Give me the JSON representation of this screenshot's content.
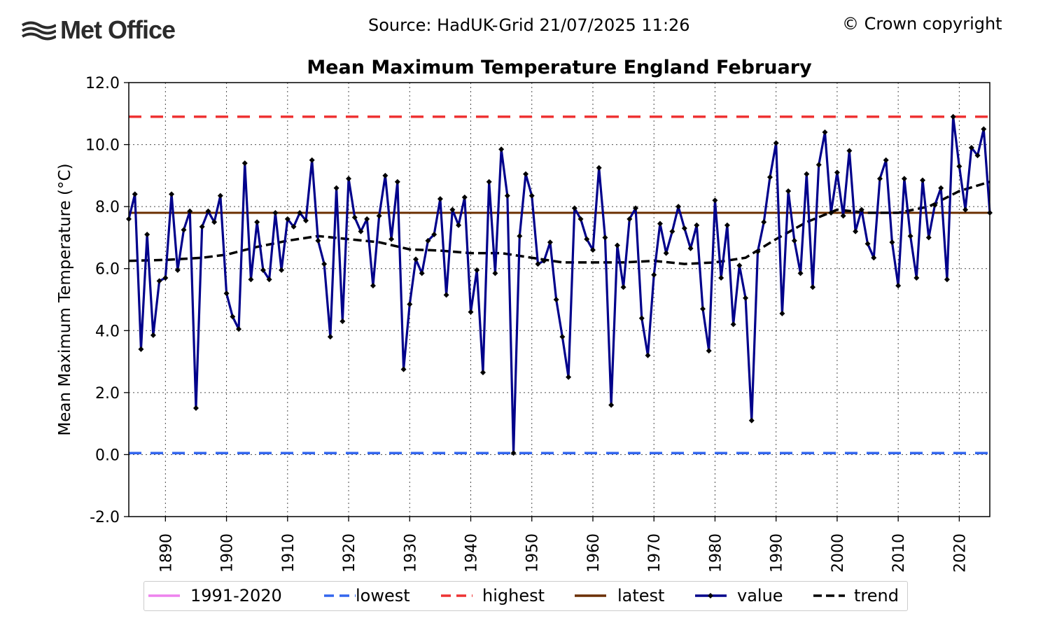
{
  "header": {
    "logo_text": "Met Office",
    "source": "Source: HadUK-Grid 21/07/2025 11:26",
    "copyright": "© Crown copyright"
  },
  "colors": {
    "value": "#00008b",
    "trend": "#000000",
    "highest": "#ee3333",
    "lowest": "#3366ee",
    "latest": "#6b2f00",
    "baseline": "#ee82ee",
    "marker": "#000000"
  },
  "chart_data": {
    "type": "line",
    "title": "Mean Maximum Temperature England February",
    "ylabel": "Mean Maximum Temperature (°C)",
    "xlabel": "",
    "xlim": [
      1884,
      2025
    ],
    "ylim": [
      -2.0,
      12.0
    ],
    "yticks": [
      "-2.0",
      "0.0",
      "2.0",
      "4.0",
      "6.0",
      "8.0",
      "10.0",
      "12.0"
    ],
    "xticks": [
      "1890",
      "1900",
      "1910",
      "1920",
      "1930",
      "1940",
      "1950",
      "1960",
      "1970",
      "1980",
      "1990",
      "2000",
      "2010",
      "2020"
    ],
    "grid": true,
    "legend_position": "bottom",
    "series": [
      {
        "name": "value",
        "x": [
          1884,
          1885,
          1886,
          1887,
          1888,
          1889,
          1890,
          1891,
          1892,
          1893,
          1894,
          1895,
          1896,
          1897,
          1898,
          1899,
          1900,
          1901,
          1902,
          1903,
          1904,
          1905,
          1906,
          1907,
          1908,
          1909,
          1910,
          1911,
          1912,
          1913,
          1914,
          1915,
          1916,
          1917,
          1918,
          1919,
          1920,
          1921,
          1922,
          1923,
          1924,
          1925,
          1926,
          1927,
          1928,
          1929,
          1930,
          1931,
          1932,
          1933,
          1934,
          1935,
          1936,
          1937,
          1938,
          1939,
          1940,
          1941,
          1942,
          1943,
          1944,
          1945,
          1946,
          1947,
          1948,
          1949,
          1950,
          1951,
          1952,
          1953,
          1954,
          1955,
          1956,
          1957,
          1958,
          1959,
          1960,
          1961,
          1962,
          1963,
          1964,
          1965,
          1966,
          1967,
          1968,
          1969,
          1970,
          1971,
          1972,
          1973,
          1974,
          1975,
          1976,
          1977,
          1978,
          1979,
          1980,
          1981,
          1982,
          1983,
          1984,
          1985,
          1986,
          1987,
          1988,
          1989,
          1990,
          1991,
          1992,
          1993,
          1994,
          1995,
          1996,
          1997,
          1998,
          1999,
          2000,
          2001,
          2002,
          2003,
          2004,
          2005,
          2006,
          2007,
          2008,
          2009,
          2010,
          2011,
          2012,
          2013,
          2014,
          2015,
          2016,
          2017,
          2018,
          2019,
          2020,
          2021,
          2022,
          2023,
          2024,
          2025
        ],
        "values": [
          7.6,
          8.4,
          3.4,
          7.1,
          3.85,
          5.6,
          5.7,
          8.4,
          5.95,
          7.25,
          7.85,
          1.5,
          7.35,
          7.85,
          7.5,
          8.35,
          5.2,
          4.45,
          4.05,
          9.4,
          5.65,
          7.5,
          5.95,
          5.65,
          7.8,
          5.95,
          7.6,
          7.35,
          7.8,
          7.55,
          9.5,
          6.9,
          6.15,
          3.8,
          8.6,
          4.3,
          8.9,
          7.65,
          7.2,
          7.6,
          5.45,
          7.7,
          9.0,
          6.95,
          8.8,
          2.75,
          4.85,
          6.3,
          5.85,
          6.9,
          7.1,
          8.25,
          5.15,
          7.9,
          7.4,
          8.3,
          4.6,
          5.95,
          2.65,
          8.8,
          5.85,
          9.85,
          8.35,
          0.05,
          7.05,
          9.05,
          8.35,
          6.15,
          6.25,
          6.85,
          5.0,
          3.8,
          2.5,
          7.95,
          7.6,
          6.95,
          6.6,
          9.25,
          7.0,
          1.6,
          6.75,
          5.4,
          7.6,
          7.95,
          4.4,
          3.2,
          5.8,
          7.45,
          6.5,
          7.2,
          8.0,
          7.3,
          6.65,
          7.4,
          4.7,
          3.35,
          8.2,
          5.7,
          7.4,
          4.2,
          6.1,
          5.05,
          1.1,
          6.55,
          7.5,
          8.95,
          10.05,
          4.55,
          8.5,
          6.9,
          5.85,
          9.05,
          5.4,
          9.35,
          10.4,
          7.8,
          9.1,
          7.7,
          9.8,
          7.2,
          7.9,
          6.8,
          6.35,
          8.9,
          9.5,
          6.85,
          5.45,
          8.9,
          7.05,
          5.7,
          8.85,
          7.0,
          8.05,
          8.6,
          5.65,
          10.9,
          9.3,
          7.9,
          9.9,
          9.65,
          10.5,
          7.8
        ]
      },
      {
        "name": "trend",
        "x": [
          1884,
          1890,
          1896,
          1900,
          1905,
          1910,
          1915,
          1920,
          1925,
          1930,
          1935,
          1940,
          1945,
          1950,
          1955,
          1960,
          1965,
          1970,
          1975,
          1980,
          1985,
          1990,
          1995,
          2000,
          2005,
          2010,
          2015,
          2020,
          2025
        ],
        "values": [
          6.25,
          6.28,
          6.35,
          6.45,
          6.7,
          6.9,
          7.05,
          6.95,
          6.85,
          6.62,
          6.58,
          6.5,
          6.5,
          6.35,
          6.2,
          6.2,
          6.2,
          6.25,
          6.15,
          6.2,
          6.35,
          6.95,
          7.5,
          7.9,
          7.8,
          7.8,
          8.0,
          8.5,
          8.8
        ]
      }
    ],
    "reference_lines": {
      "highest": 10.9,
      "lowest": 0.05,
      "latest": 7.8
    },
    "legend": [
      "1991-2020",
      "lowest",
      "highest",
      "latest",
      "value",
      "trend"
    ]
  }
}
